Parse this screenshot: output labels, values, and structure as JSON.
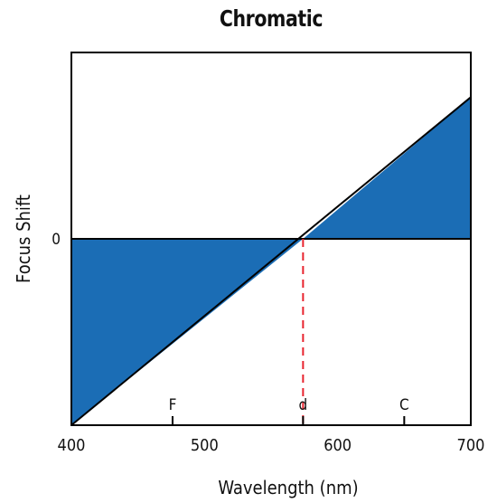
{
  "chart_data": {
    "type": "area",
    "title": "Chromatic",
    "xlabel": "Wavelength (nm)",
    "ylabel": "Focus Shift",
    "xlim": [
      400,
      700
    ],
    "ylim": [
      -1,
      1
    ],
    "x_ticks": [
      400,
      500,
      600,
      700
    ],
    "y_tick_labels": [
      {
        "value": 0,
        "label": "0"
      }
    ],
    "reference_lines": [
      {
        "label": "F",
        "x": 476
      },
      {
        "label": "d",
        "x": 574
      },
      {
        "label": "C",
        "x": 650
      }
    ],
    "series": [
      {
        "x": [
          400,
          700
        ],
        "y": [
          -1,
          0.76
        ]
      }
    ],
    "zero_crossing_x": 574,
    "fill_color": "#1b6db5",
    "line_color": "#000000",
    "reference_line_color": "#e8232e",
    "grid": false
  }
}
